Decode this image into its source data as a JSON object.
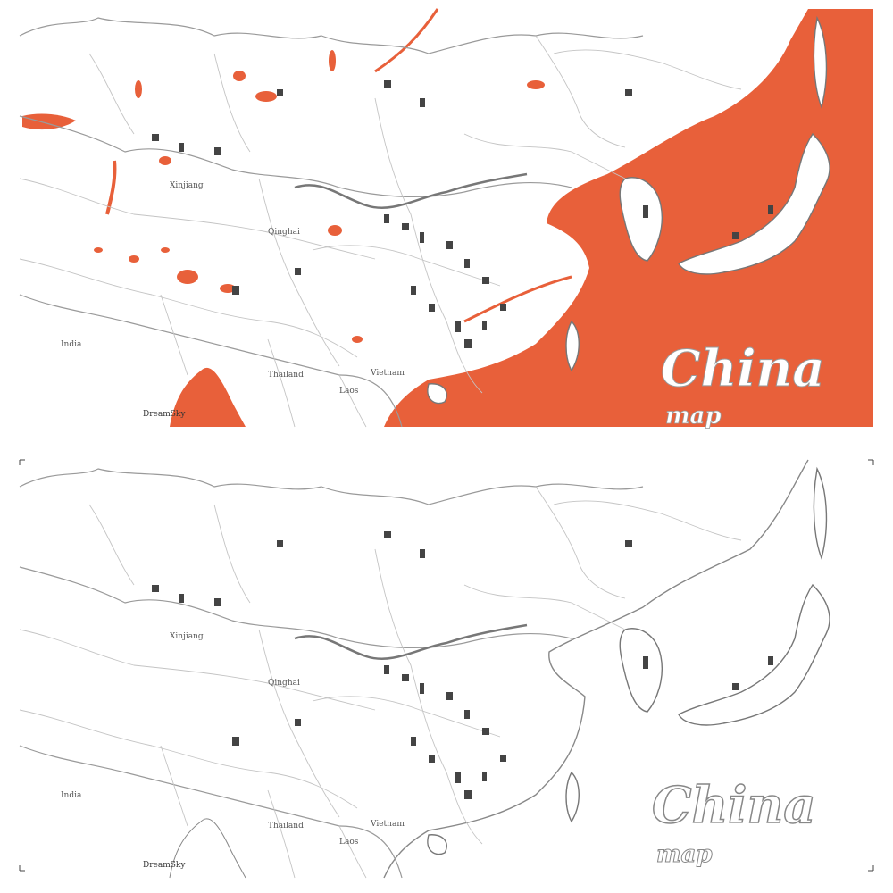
{
  "maps": [
    {
      "variant": "colored",
      "sea_color": "#e8603a",
      "title": "China",
      "subtitle": "map"
    },
    {
      "variant": "outline",
      "title": "China",
      "subtitle": "map"
    }
  ],
  "brand": "DreamSky",
  "labels": {
    "xinjiang": "Xinjiang",
    "qinghai": "Qinghai",
    "india": "India",
    "thailand": "Thailand",
    "vietnam": "Vietnam",
    "laos": "Laos"
  },
  "colors": {
    "sea": "#e8603a",
    "land": "#ffffff",
    "outline": "#9a9a9a"
  }
}
